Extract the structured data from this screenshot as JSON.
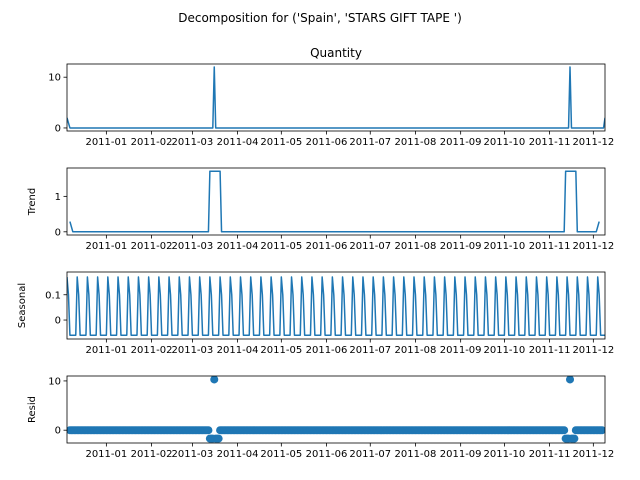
{
  "figure": {
    "suptitle": "Decomposition for ('Spain', 'STARS GIFT TAPE ')"
  },
  "colors": {
    "line": "#1f77b4",
    "axes": "#000000",
    "background": "#ffffff"
  },
  "chart_data": [
    {
      "type": "line",
      "title": "Quantity",
      "ylabel": "",
      "ylim": [
        -0.6,
        12.6
      ],
      "yticks": [
        0,
        10
      ],
      "xtick_labels": [
        "2011-01",
        "2011-02",
        "2011-03",
        "2011-04",
        "2011-05",
        "2011-06",
        "2011-07",
        "2011-08",
        "2011-09",
        "2011-10",
        "2011-11",
        "2011-12"
      ],
      "series": [
        {
          "x": [
            "2010-12-05",
            "2010-12-07",
            "2011-03-15",
            "2011-03-16",
            "2011-03-17",
            "2011-11-14",
            "2011-11-15",
            "2011-11-16",
            "2011-12-08",
            "2011-12-09"
          ],
          "values": [
            2,
            0,
            0,
            12,
            0,
            0,
            12,
            0,
            0,
            2
          ]
        }
      ]
    },
    {
      "type": "line",
      "title": "",
      "ylabel": "Trend",
      "ylim": [
        -0.09,
        1.8
      ],
      "yticks": [
        0,
        1
      ],
      "xtick_labels": [
        "2011-01",
        "2011-02",
        "2011-03",
        "2011-04",
        "2011-05",
        "2011-06",
        "2011-07",
        "2011-08",
        "2011-09",
        "2011-10",
        "2011-11",
        "2011-12"
      ],
      "series": [
        {
          "x": [
            "2010-12-07",
            "2010-12-09",
            "2011-03-12",
            "2011-03-13",
            "2011-03-20",
            "2011-03-21",
            "2011-11-11",
            "2011-11-12",
            "2011-11-19",
            "2011-11-20",
            "2011-12-03",
            "2011-12-05"
          ],
          "values": [
            0.29,
            0,
            0,
            1.71,
            1.71,
            0,
            0,
            1.71,
            1.71,
            0,
            0,
            0.29
          ]
        }
      ]
    },
    {
      "type": "line",
      "title": "",
      "ylabel": "Seasonal",
      "ylim": [
        -0.075,
        0.19
      ],
      "yticks": [
        0.0,
        0.1
      ],
      "xtick_labels": [
        "2011-01",
        "2011-02",
        "2011-03",
        "2011-04",
        "2011-05",
        "2011-06",
        "2011-07",
        "2011-08",
        "2011-09",
        "2011-10",
        "2011-11",
        "2011-12"
      ],
      "series": [
        {
          "start": "2010-12-05",
          "end": "2011-12-09",
          "period_values": [
            0.17,
            0.1,
            -0.06,
            -0.06,
            -0.06,
            -0.06,
            -0.06
          ]
        }
      ]
    },
    {
      "type": "scatter",
      "title": "",
      "ylabel": "Resid",
      "ylim": [
        -2.6,
        11
      ],
      "yticks": [
        0,
        10
      ],
      "xtick_labels": [
        "2011-01",
        "2011-02",
        "2011-03",
        "2011-04",
        "2011-05",
        "2011-06",
        "2011-07",
        "2011-08",
        "2011-09",
        "2011-10",
        "2011-11",
        "2011-12"
      ],
      "series": [
        {
          "start": "2010-12-07",
          "end": "2011-12-07",
          "base_value": 0,
          "points": [
            {
              "x": "2011-03-13",
              "value": -1.7
            },
            {
              "x": "2011-03-14",
              "value": -1.7
            },
            {
              "x": "2011-03-15",
              "value": -1.7
            },
            {
              "x": "2011-03-16",
              "value": 10.3
            },
            {
              "x": "2011-03-17",
              "value": -1.7
            },
            {
              "x": "2011-03-18",
              "value": -1.7
            },
            {
              "x": "2011-03-19",
              "value": -1.7
            },
            {
              "x": "2011-11-12",
              "value": -1.7
            },
            {
              "x": "2011-11-13",
              "value": -1.7
            },
            {
              "x": "2011-11-14",
              "value": -1.7
            },
            {
              "x": "2011-11-15",
              "value": 10.3
            },
            {
              "x": "2011-11-16",
              "value": -1.7
            },
            {
              "x": "2011-11-17",
              "value": -1.7
            },
            {
              "x": "2011-11-18",
              "value": -1.7
            }
          ]
        }
      ]
    }
  ]
}
